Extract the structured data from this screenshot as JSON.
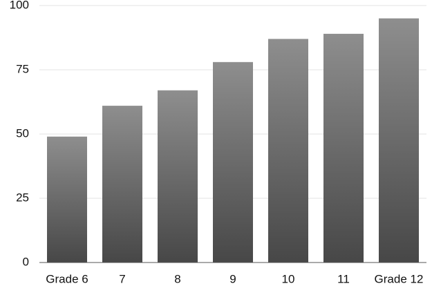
{
  "chart_data": {
    "type": "bar",
    "categories": [
      "Grade 6",
      "7",
      "8",
      "9",
      "10",
      "11",
      "Grade 12"
    ],
    "values": [
      49,
      61,
      67,
      78,
      87,
      89,
      95
    ],
    "gradient": [
      "#8e8e8e",
      "#474747"
    ],
    "ylim": [
      0,
      100
    ],
    "yticks": [
      0,
      25,
      50,
      75,
      100
    ],
    "grid": true
  }
}
